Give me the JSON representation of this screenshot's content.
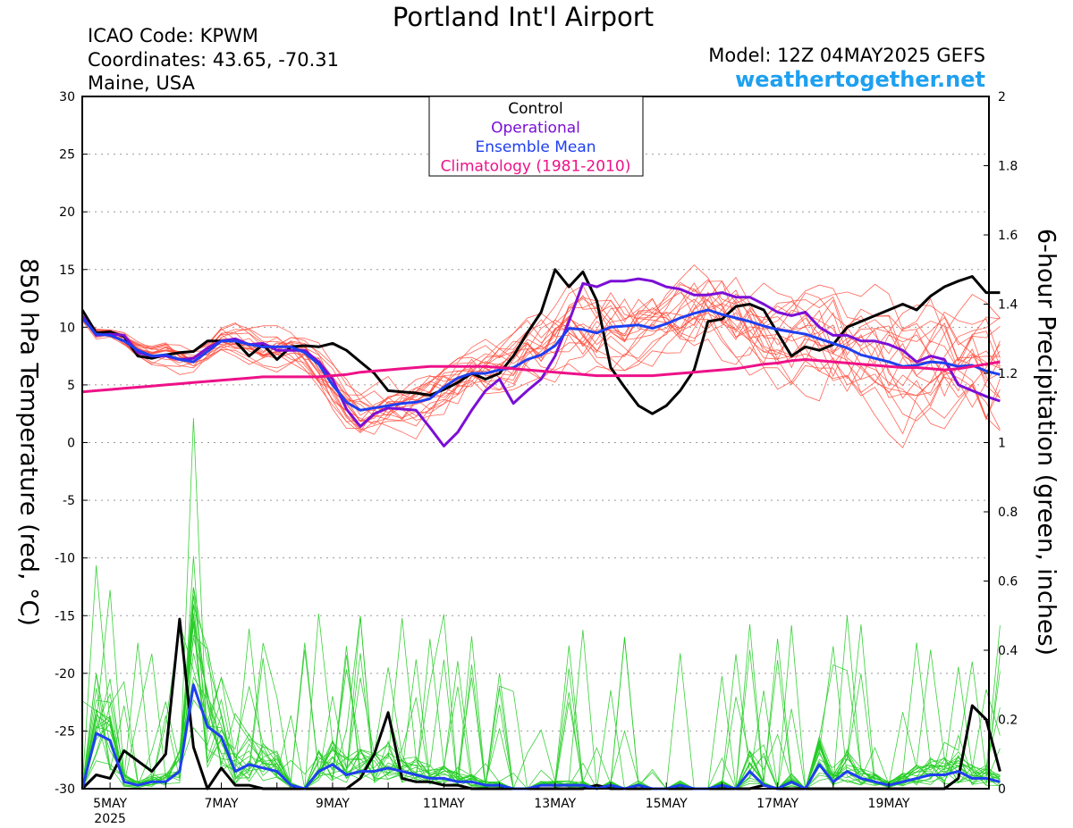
{
  "header": {
    "title": "Portland Int'l Airport",
    "icao": "ICAO Code: KPWM",
    "coords": "Coordinates: 43.65, -70.31",
    "region": "Maine, USA",
    "model": "Model: 12Z 04MAY2025 GEFS",
    "site": "weathertogether.net"
  },
  "colors": {
    "control": "#000000",
    "operational": "#7b0fd6",
    "mean": "#1f3ff0",
    "climatology": "#ee1188",
    "temp_members": "#ff4a3a",
    "precip_members": "#22cc22",
    "site": "#1ea0f0"
  },
  "chart_data": {
    "type": "line",
    "ylabel_left": "850 hPa Temperature (red, °C)",
    "ylabel_right": "6-hour Precipitation (green, inches)",
    "ylim_left": [
      -30,
      30
    ],
    "ylim_right": [
      0,
      2
    ],
    "yticks_left": [
      "30",
      "25",
      "20",
      "15",
      "10",
      "5",
      "0",
      "-5",
      "-10",
      "-15",
      "-20",
      "-25",
      "-30"
    ],
    "yticks_right": [
      "2",
      "1.8",
      "1.6",
      "1.4",
      "1.2",
      "1",
      "0.8",
      "0.6",
      "0.4",
      "0.2",
      "0"
    ],
    "xticks": [
      "5MAY",
      "7MAY",
      "9MAY",
      "11MAY",
      "13MAY",
      "15MAY",
      "17MAY",
      "19MAY"
    ],
    "xtick_days": [
      5,
      7,
      9,
      11,
      13,
      15,
      17,
      19
    ],
    "x_sub": "2025",
    "x_start_day": 4.5,
    "x_step_days": 0.25,
    "legend": [
      "Control",
      "Operational",
      "Ensemble Mean",
      "Climatology (1981-2010)"
    ],
    "legend_position": "top-center",
    "grid": "horizontal dotted",
    "series": [
      {
        "name": "Control",
        "axis": "left",
        "values": [
          11.5,
          9.5,
          9.6,
          9.2,
          7.5,
          7.3,
          7.6,
          7.8,
          7.9,
          8.8,
          8.8,
          8.8,
          7.5,
          8.5,
          7.2,
          8.3,
          8.4,
          8.3,
          8.6,
          8.0,
          7.0,
          6.0,
          4.5,
          4.4,
          4.3,
          4.1,
          4.6,
          5.2,
          6.0,
          5.5,
          6.0,
          7.5,
          9.5,
          11.3,
          15.0,
          13.5,
          14.8,
          12.3,
          6.5,
          4.8,
          3.2,
          2.5,
          3.2,
          4.5,
          6.3,
          10.5,
          10.7,
          11.8,
          12.0,
          11.5,
          9.5,
          7.5,
          8.3,
          8.0,
          8.5,
          10.0,
          10.5,
          11.0,
          11.5,
          12.0,
          11.5,
          12.7,
          13.5,
          14.0,
          14.4,
          13.0,
          13.0
        ]
      },
      {
        "name": "Operational",
        "axis": "left",
        "values": [
          11.0,
          9.3,
          9.4,
          9.3,
          7.8,
          7.5,
          7.5,
          7.2,
          7.3,
          8.2,
          8.8,
          9.0,
          8.5,
          8.6,
          8.0,
          8.0,
          8.0,
          7.0,
          5.5,
          2.9,
          1.4,
          2.5,
          3.0,
          2.9,
          2.8,
          1.3,
          -0.3,
          0.9,
          2.8,
          4.5,
          5.5,
          3.4,
          4.5,
          5.5,
          7.5,
          10.5,
          13.8,
          13.5,
          14.0,
          14.0,
          14.2,
          14.0,
          13.5,
          13.3,
          12.8,
          12.8,
          13.0,
          12.6,
          12.6,
          12.0,
          11.3,
          11.0,
          11.3,
          10.0,
          9.3,
          9.3,
          8.8,
          8.8,
          8.5,
          8.0,
          7.0,
          7.5,
          7.2,
          5.0,
          4.5,
          4.0,
          3.6
        ]
      },
      {
        "name": "Ensemble Mean",
        "axis": "left",
        "values": [
          10.8,
          9.4,
          9.3,
          8.8,
          8.0,
          7.5,
          7.6,
          7.2,
          7.0,
          7.9,
          8.8,
          8.8,
          8.5,
          8.3,
          8.3,
          8.3,
          7.8,
          6.8,
          5.0,
          3.5,
          2.8,
          3.0,
          3.2,
          3.4,
          3.5,
          3.8,
          4.8,
          5.6,
          6.0,
          6.0,
          6.3,
          6.5,
          7.2,
          7.6,
          8.4,
          9.9,
          9.8,
          9.5,
          10.0,
          10.1,
          10.2,
          9.9,
          10.3,
          10.8,
          11.2,
          11.5,
          11.1,
          10.8,
          10.5,
          10.1,
          9.8,
          9.6,
          9.4,
          9.0,
          8.6,
          8.2,
          7.6,
          7.3,
          7.0,
          6.6,
          6.7,
          7.0,
          6.9,
          6.6,
          6.7,
          6.2,
          5.9
        ]
      },
      {
        "name": "Climatology (1981-2010)",
        "axis": "left",
        "values": [
          4.4,
          4.5,
          4.6,
          4.7,
          4.8,
          4.9,
          5.0,
          5.1,
          5.2,
          5.3,
          5.4,
          5.5,
          5.6,
          5.7,
          5.7,
          5.7,
          5.7,
          5.7,
          5.8,
          5.9,
          6.1,
          6.2,
          6.3,
          6.4,
          6.5,
          6.6,
          6.6,
          6.6,
          6.6,
          6.6,
          6.5,
          6.4,
          6.3,
          6.2,
          6.1,
          6.0,
          5.9,
          5.8,
          5.8,
          5.8,
          5.8,
          5.8,
          5.9,
          6.0,
          6.1,
          6.2,
          6.3,
          6.4,
          6.6,
          6.8,
          6.9,
          7.1,
          7.2,
          7.1,
          7.0,
          6.9,
          6.8,
          6.7,
          6.6,
          6.5,
          6.5,
          6.4,
          6.3,
          6.4,
          6.6,
          6.8,
          7.0
        ]
      },
      {
        "name": "Control",
        "axis": "right",
        "values": [
          0.0,
          0.04,
          0.03,
          0.11,
          0.08,
          0.05,
          0.1,
          0.49,
          0.12,
          0.0,
          0.06,
          0.01,
          0.01,
          0.0,
          0.0,
          0.0,
          0.0,
          0.0,
          0.0,
          0.0,
          0.03,
          0.1,
          0.22,
          0.03,
          0.02,
          0.02,
          0.01,
          0.01,
          0.0,
          0.0,
          0.0,
          0.0,
          0.0,
          0.0,
          0.0,
          0.0,
          0.0,
          0.01,
          0.0,
          0.0,
          0.0,
          0.0,
          0.0,
          0.0,
          0.0,
          0.0,
          0.0,
          0.0,
          0.0,
          0.01,
          0.0,
          0.0,
          0.0,
          0.0,
          0.0,
          0.0,
          0.0,
          0.0,
          0.0,
          0.0,
          0.0,
          0.0,
          0.0,
          0.03,
          0.24,
          0.2,
          0.05
        ]
      },
      {
        "name": "Ensemble Mean",
        "axis": "right",
        "values": [
          0.0,
          0.16,
          0.14,
          0.02,
          0.01,
          0.02,
          0.02,
          0.05,
          0.3,
          0.18,
          0.15,
          0.05,
          0.07,
          0.06,
          0.05,
          0.01,
          0.0,
          0.05,
          0.07,
          0.04,
          0.05,
          0.05,
          0.06,
          0.05,
          0.04,
          0.03,
          0.03,
          0.02,
          0.02,
          0.01,
          0.01,
          0.0,
          0.0,
          0.01,
          0.01,
          0.01,
          0.01,
          0.0,
          0.01,
          0.0,
          0.01,
          0.0,
          0.0,
          0.01,
          0.0,
          0.0,
          0.01,
          0.0,
          0.05,
          0.01,
          0.0,
          0.02,
          0.0,
          0.07,
          0.02,
          0.05,
          0.03,
          0.02,
          0.01,
          0.02,
          0.03,
          0.04,
          0.04,
          0.05,
          0.03,
          0.03,
          0.02
        ]
      }
    ]
  }
}
